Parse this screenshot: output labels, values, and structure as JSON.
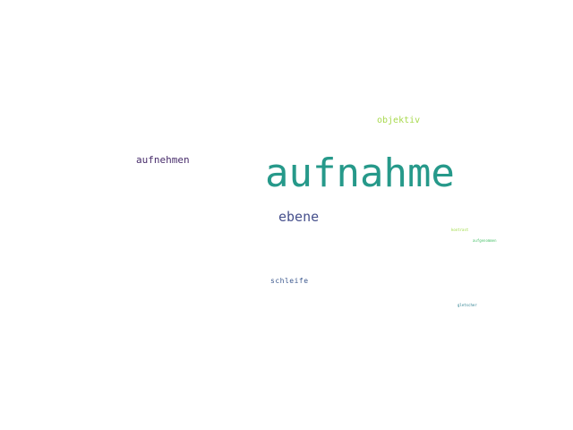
{
  "colors": {
    "background": "#ffffff",
    "aufnahme": "#26998a",
    "aufnehmen": "#482d6b",
    "objektiv": "#a8d94e",
    "ebene": "#46508c",
    "schleife": "#3e5a8f",
    "kontrast": "#9bd93c",
    "aufgenommen": "#4cc26c",
    "gletscher": "#2a7f8e"
  },
  "words": {
    "aufnahme": "aufnahme",
    "aufnehmen": "aufnehmen",
    "objektiv": "objektiv",
    "ebene": "ebene",
    "schleife": "schleife",
    "kontrast": "kontrast",
    "aufgenommen": "aufgenommen",
    "gletscher": "gletscher"
  }
}
